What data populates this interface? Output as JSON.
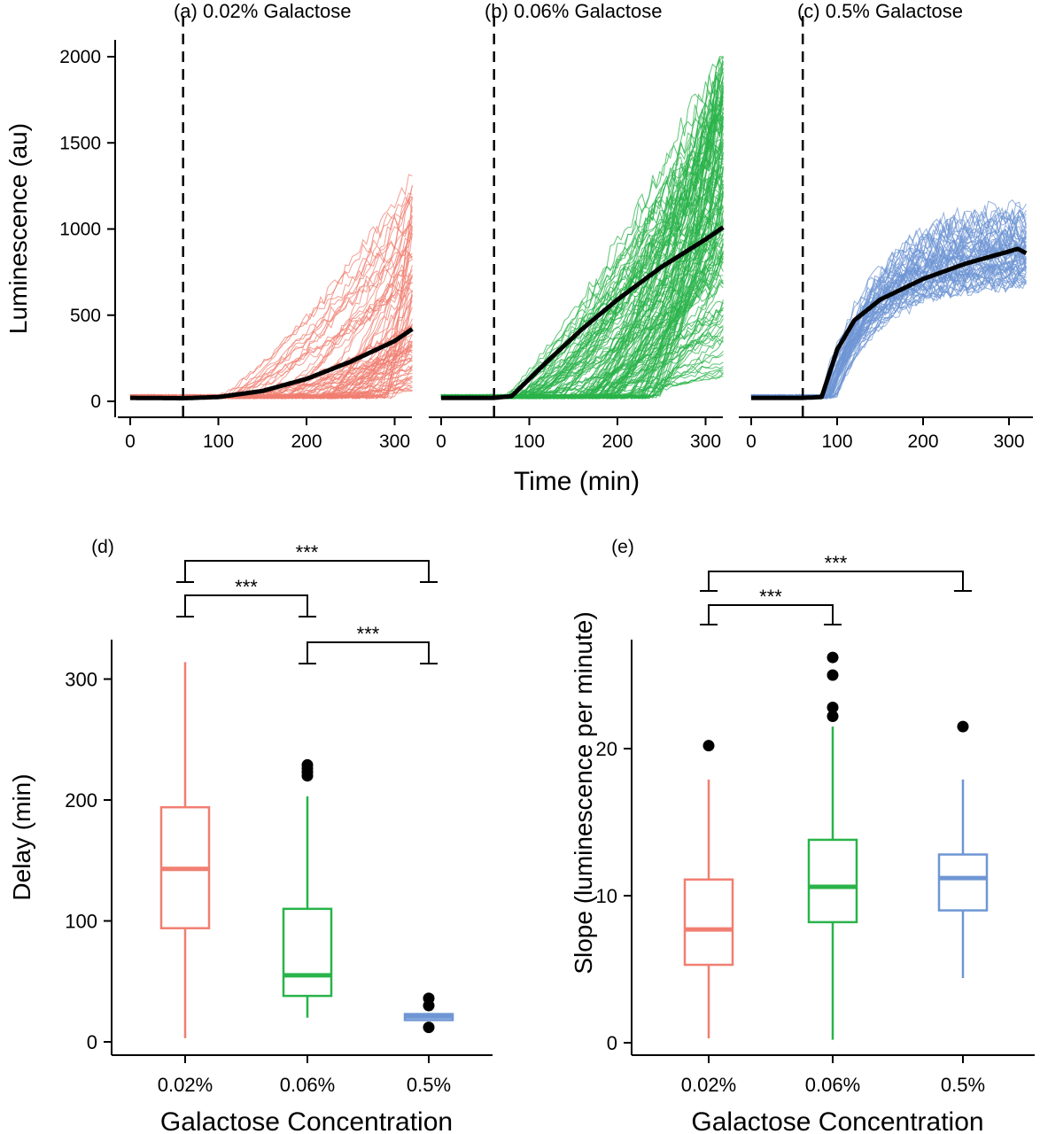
{
  "chart_data": [
    {
      "type": "line",
      "title": "(a) 0.02% Galactose",
      "xlabel": "Time (min)",
      "ylabel": "Luminescence (au)",
      "xlim": [
        0,
        320
      ],
      "ylim": [
        0,
        2000
      ],
      "xticks": [
        0,
        100,
        200,
        300
      ],
      "yticks": [
        0,
        500,
        1000,
        1500,
        2000
      ],
      "induction_line_x": 60,
      "color": "#f07f72",
      "mean_series": {
        "x": [
          0,
          60,
          100,
          150,
          200,
          250,
          300,
          320
        ],
        "y": [
          20,
          18,
          25,
          60,
          130,
          230,
          350,
          420
        ]
      },
      "traces": {
        "count": 90,
        "onset_range": [
          100,
          300
        ],
        "final_range": [
          20,
          1260
        ]
      }
    },
    {
      "type": "line",
      "title": "(b) 0.06% Galactose",
      "xlabel": "Time (min)",
      "xlim": [
        0,
        320
      ],
      "ylim": [
        0,
        2000
      ],
      "xticks": [
        0,
        100,
        200,
        300
      ],
      "induction_line_x": 60,
      "color": "#29b34a",
      "mean_series": {
        "x": [
          0,
          60,
          80,
          120,
          160,
          200,
          250,
          300,
          320
        ],
        "y": [
          20,
          20,
          30,
          230,
          420,
          590,
          780,
          940,
          1010
        ]
      },
      "traces": {
        "count": 150,
        "onset_range": [
          70,
          250
        ],
        "final_range": [
          100,
          2000
        ]
      }
    },
    {
      "type": "line",
      "title": "(c) 0.5% Galactose",
      "xlabel": "Time (min)",
      "xlim": [
        0,
        320
      ],
      "ylim": [
        0,
        2000
      ],
      "xticks": [
        0,
        100,
        200,
        300
      ],
      "induction_line_x": 60,
      "color": "#6f96d4",
      "mean_series": {
        "x": [
          0,
          60,
          82,
          100,
          120,
          150,
          200,
          250,
          300,
          310,
          320
        ],
        "y": [
          20,
          20,
          25,
          300,
          470,
          590,
          710,
          800,
          870,
          885,
          860
        ]
      },
      "traces": {
        "count": 60,
        "onset_range": [
          80,
          100
        ],
        "final_range": [
          650,
          1100
        ]
      }
    },
    {
      "type": "box",
      "panel_label": "(d)",
      "xlabel": "Galactose Concentration",
      "ylabel": "Delay (min)",
      "ylim": [
        0,
        330
      ],
      "yticks": [
        0,
        100,
        200,
        300
      ],
      "categories": [
        "0.02%",
        "0.06%",
        "0.5%"
      ],
      "colors": [
        "#f07f72",
        "#29b34a",
        "#6f96d4"
      ],
      "boxes": [
        {
          "whisker_low": 3,
          "q1": 94,
          "median": 143,
          "q3": 194,
          "whisker_high": 314,
          "outliers": []
        },
        {
          "whisker_low": 20,
          "q1": 38,
          "median": 55,
          "q3": 110,
          "whisker_high": 203,
          "outliers": [
            220,
            223,
            226,
            229
          ]
        },
        {
          "whisker_low": 18,
          "q1": 18,
          "median": 21,
          "q3": 23,
          "whisker_high": 24,
          "outliers": [
            12,
            30,
            36
          ]
        }
      ],
      "significance": [
        {
          "from": 0,
          "to": 2,
          "label": "***",
          "level": 0
        },
        {
          "from": 0,
          "to": 1,
          "label": "***",
          "level": 1
        },
        {
          "from": 1,
          "to": 2,
          "label": "***",
          "level": 2
        }
      ]
    },
    {
      "type": "box",
      "panel_label": "(e)",
      "xlabel": "Galactose Concentration",
      "ylabel": "Slope (luminescence per minute)",
      "ylim": [
        0,
        27.5
      ],
      "yticks": [
        0,
        10,
        20
      ],
      "categories": [
        "0.02%",
        "0.06%",
        "0.5%"
      ],
      "colors": [
        "#f07f72",
        "#29b34a",
        "#6f96d4"
      ],
      "boxes": [
        {
          "whisker_low": 0.3,
          "q1": 5.3,
          "median": 7.7,
          "q3": 11.1,
          "whisker_high": 17.9,
          "outliers": [
            20.2
          ]
        },
        {
          "whisker_low": 0.2,
          "q1": 8.2,
          "median": 10.6,
          "q3": 13.8,
          "whisker_high": 21.5,
          "outliers": [
            22.2,
            22.8,
            25.0,
            26.2
          ]
        },
        {
          "whisker_low": 4.4,
          "q1": 9.0,
          "median": 11.2,
          "q3": 12.8,
          "whisker_high": 17.9,
          "outliers": [
            21.5
          ]
        }
      ],
      "significance": [
        {
          "from": 0,
          "to": 2,
          "label": "***",
          "level": 0
        },
        {
          "from": 0,
          "to": 1,
          "label": "***",
          "level": 1
        }
      ]
    }
  ]
}
